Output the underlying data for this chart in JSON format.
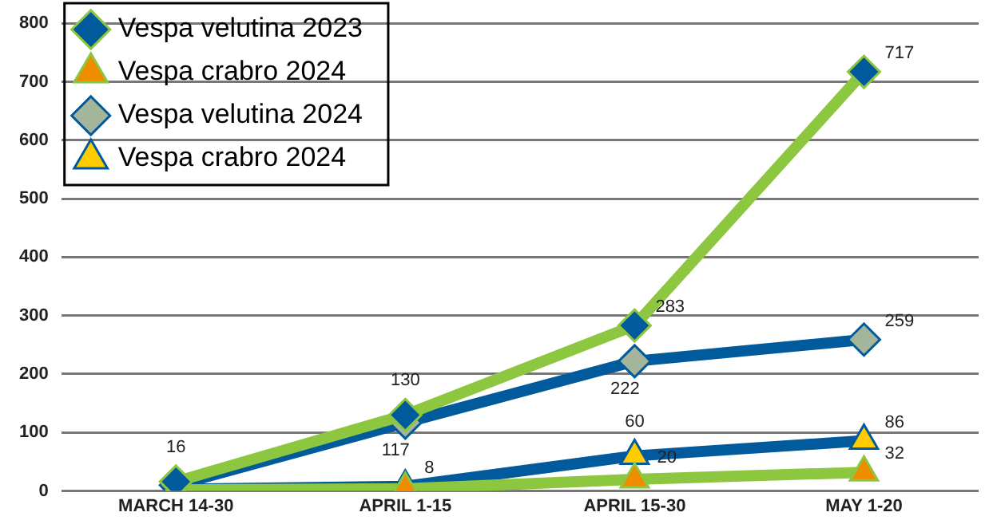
{
  "chart_data": {
    "type": "line",
    "categories": [
      "MARCH 14-30",
      "APRIL 1-15",
      "APRIL 15-30",
      "MAY 1-20"
    ],
    "series": [
      {
        "name": "Vespa velutina 2023",
        "color": "#8dc63f",
        "colors": [
          "#005a9c",
          "#005a9c",
          "#005a9c",
          "#005a9c"
        ],
        "marker": "diamond",
        "values": [
          16,
          130,
          283,
          717
        ],
        "value_labels": [
          "16",
          "130",
          "283",
          "717"
        ]
      },
      {
        "name": "Vespa crabro 2024",
        "color": "#8dc63f",
        "colors": [
          "#f08c00",
          "#f08c00",
          "#f08c00",
          "#f08c00"
        ],
        "marker": "triangle",
        "values": [
          2,
          4,
          20,
          32
        ],
        "value_labels": [
          null,
          null,
          "20",
          "32"
        ]
      },
      {
        "name": "Vespa velutina 2024",
        "color": "#005a9c",
        "colors": [
          "#a3b59a",
          "#a3b59a",
          "#a3b59a",
          "#a3b59a"
        ],
        "marker": "diamond",
        "values": [
          10,
          117,
          222,
          259
        ],
        "value_labels": [
          null,
          "117",
          "222",
          "259"
        ]
      },
      {
        "name": "Vespa crabro 2024",
        "color": "#005a9c",
        "colors": [
          "#ffcc00",
          "#ffcc00",
          "#ffcc00",
          "#ffcc00"
        ],
        "marker": "triangle",
        "values": [
          3,
          8,
          60,
          86
        ],
        "value_labels": [
          null,
          "8",
          "60",
          "86"
        ]
      }
    ],
    "ylim": [
      0,
      800
    ],
    "yticks": [
      0,
      100,
      200,
      300,
      400,
      500,
      600,
      700,
      800
    ],
    "grid": "y",
    "legend": "top left",
    "line_style": "solid"
  }
}
